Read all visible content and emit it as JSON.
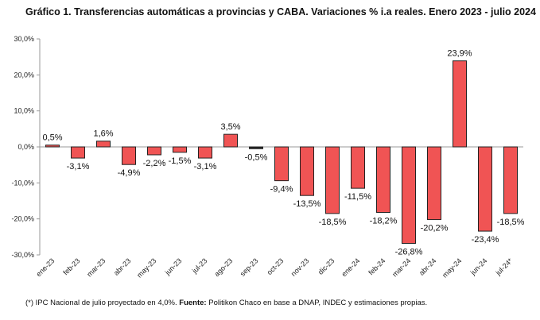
{
  "chart_data": {
    "type": "bar",
    "title": "Gráfico 1. Transferencias automáticas a provincias y CABA. Variaciones % i.a reales. Enero 2023 - julio 2024",
    "categories": [
      "ene-23",
      "feb-23",
      "mar-23",
      "abr-23",
      "may-23",
      "jun-23",
      "jul-23",
      "ago-23",
      "sep-23",
      "oct-23",
      "nov-23",
      "dic-23",
      "ene-24",
      "feb-24",
      "mar-24",
      "abr-24",
      "may-24",
      "jun-24",
      "jul-24*"
    ],
    "values": [
      0.5,
      -3.1,
      1.6,
      -4.9,
      -2.2,
      -1.5,
      -3.1,
      3.5,
      -0.5,
      -9.4,
      -13.5,
      -18.5,
      -11.5,
      -18.2,
      -26.8,
      -20.2,
      23.9,
      -23.4,
      -18.5
    ],
    "value_labels": [
      "0,5%",
      "-3,1%",
      "1,6%",
      "-4,9%",
      "-2,2%",
      "-1,5%",
      "-3,1%",
      "3,5%",
      "-0,5%",
      "-9,4%",
      "-13,5%",
      "-18,5%",
      "-11,5%",
      "-18,2%",
      "-26,8%",
      "-20,2%",
      "23,9%",
      "-23,4%",
      "-18,5%"
    ],
    "y_ticks": [
      30,
      20,
      10,
      0,
      -10,
      -20,
      -30
    ],
    "y_tick_labels": [
      "30,0%",
      "20,0%",
      "10,0%",
      "0,0%",
      "-10,0%",
      "-20,0%",
      "-30,0%"
    ],
    "ylim": [
      -30,
      30
    ],
    "xlabel": "",
    "ylabel": "",
    "grid": false,
    "bar_color": "#f05454",
    "bar_color_sep23": "#222222",
    "bar_edge": "#222222"
  },
  "footnote": {
    "prefix": "(*) IPC Nacional de julio proyectado en 4,0%. ",
    "bold": "Fuente:",
    "suffix": " Politikon Chaco en base a DNAP, INDEC y estimaciones propias."
  }
}
